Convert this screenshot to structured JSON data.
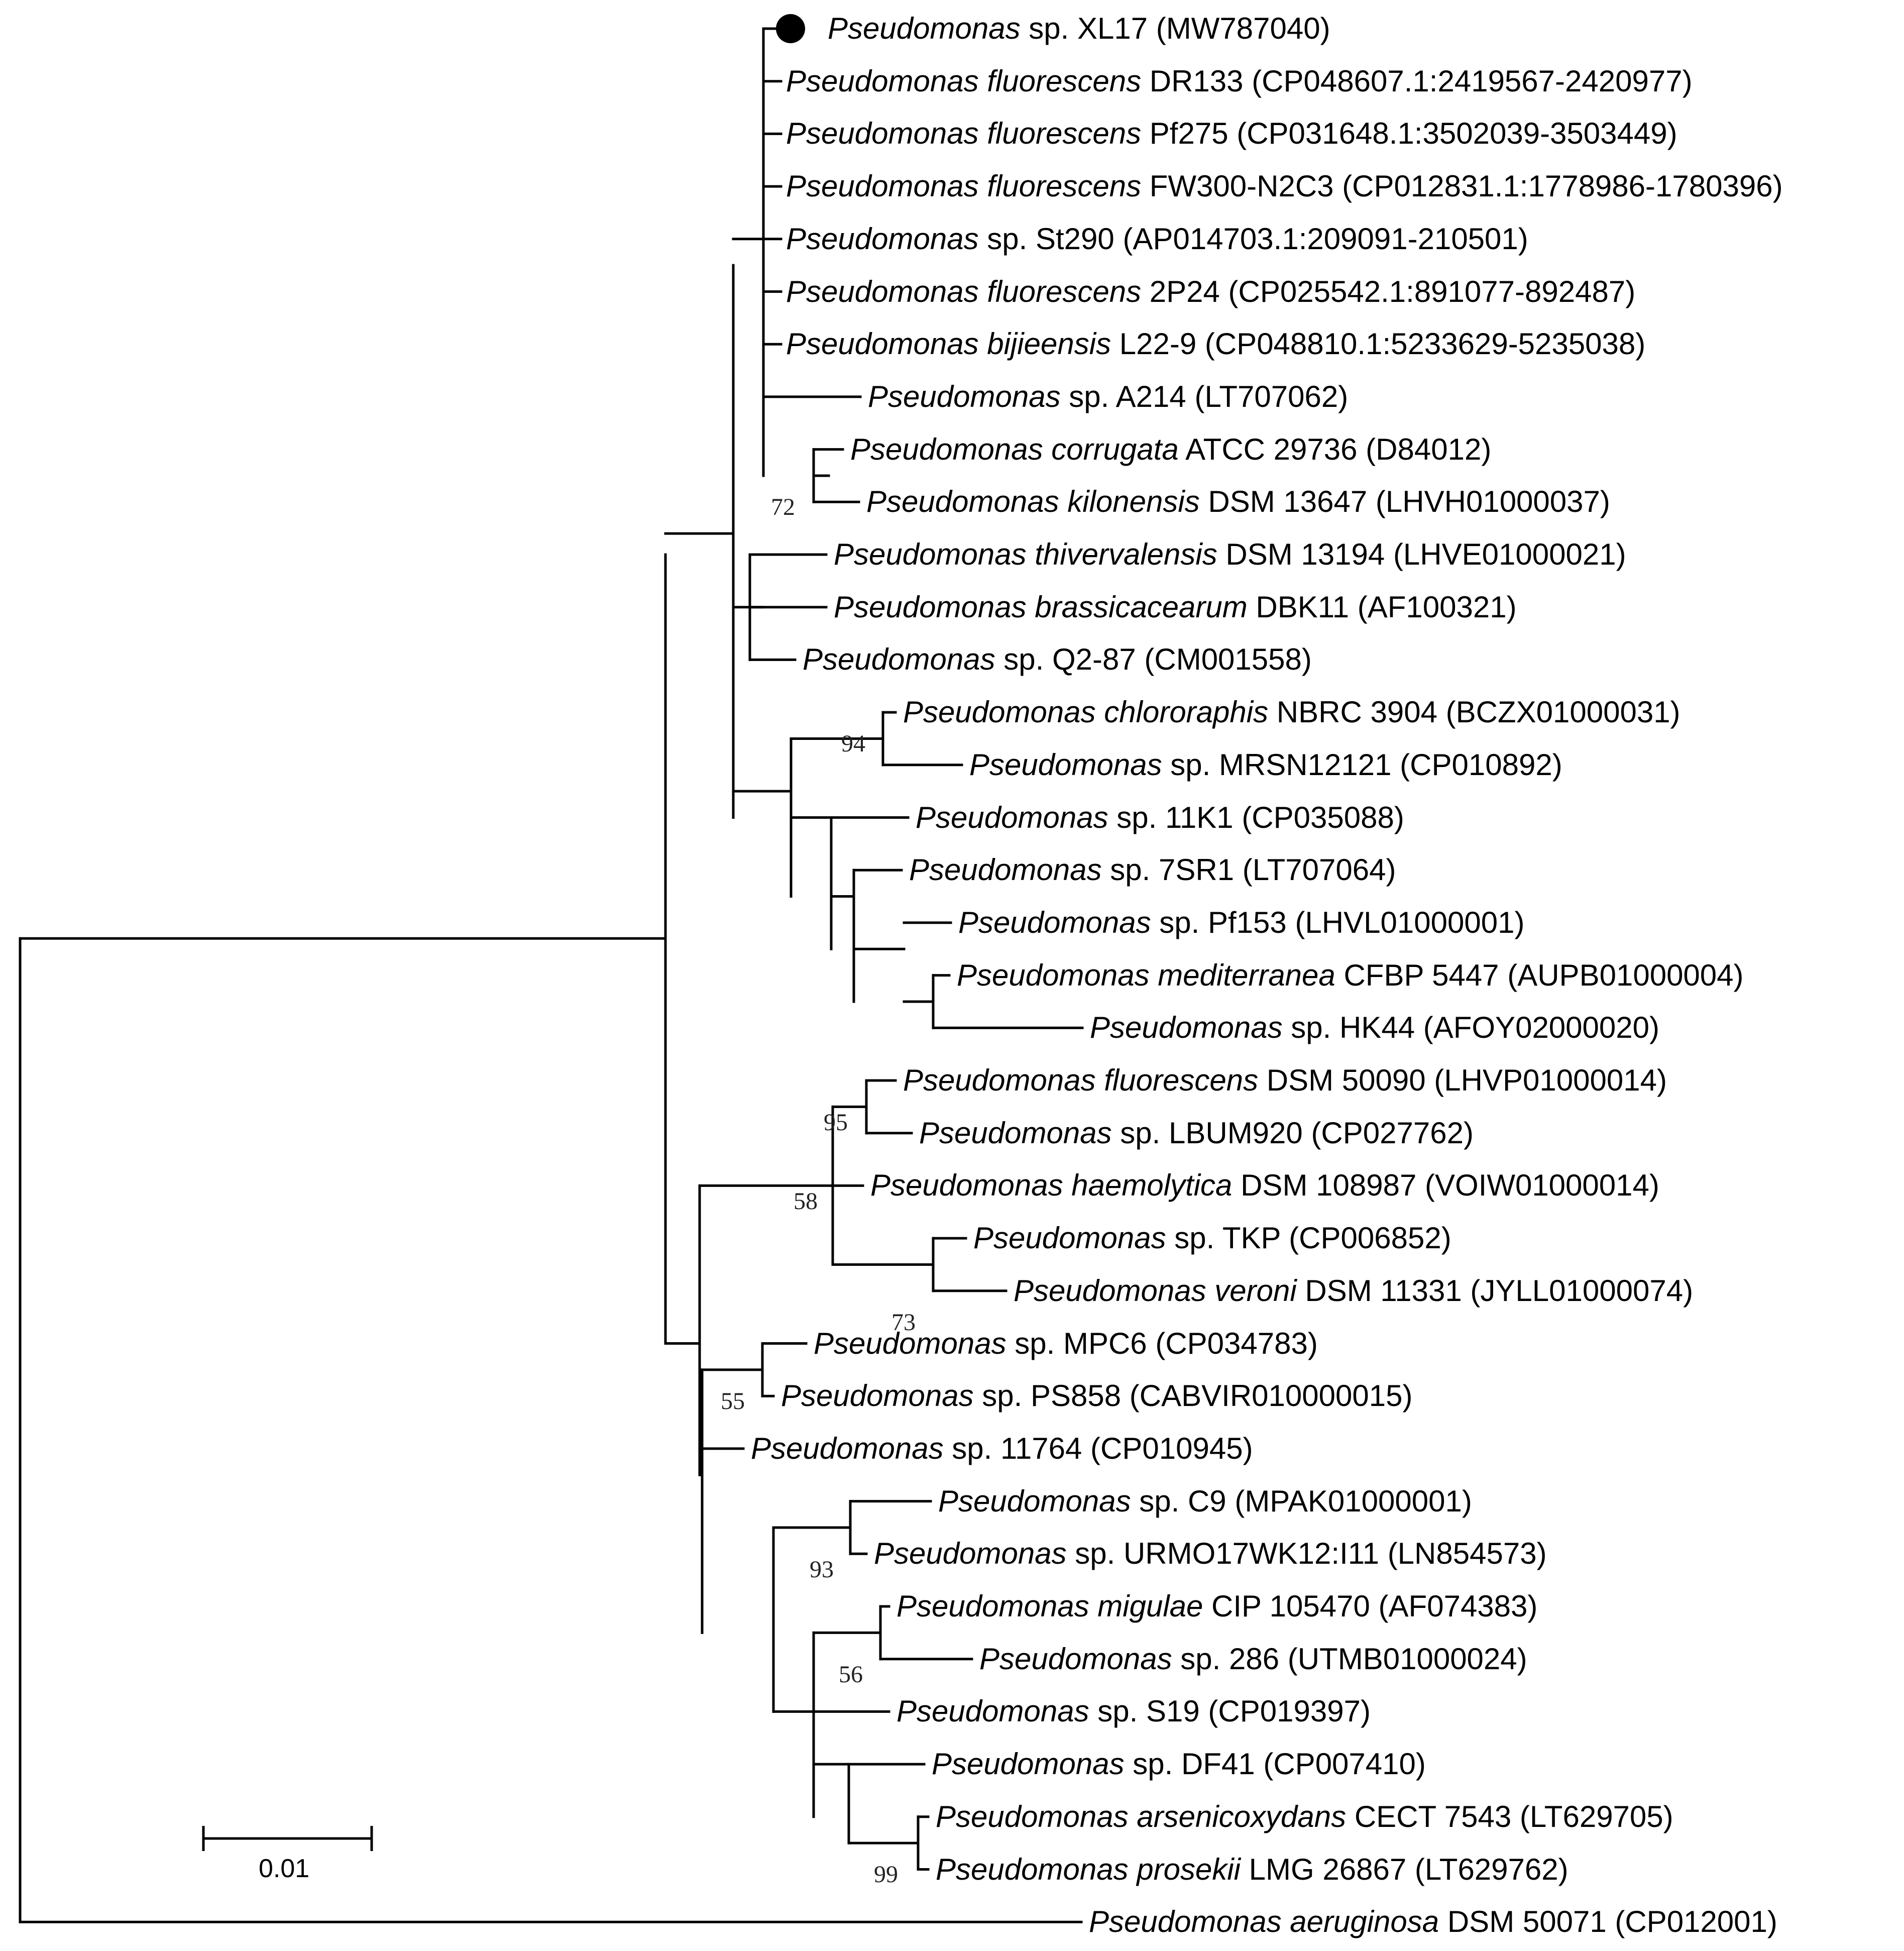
{
  "figure": {
    "type": "phylogenetic_tree",
    "scale_bar_label": "0.01",
    "query_marker": "filled-circle"
  },
  "taxa": [
    {
      "id": "t1",
      "genus": "Pseudomonas",
      "species": "",
      "rest": " sp. XL17 (MW787040)",
      "marker": true
    },
    {
      "id": "t2",
      "genus": "Pseudomonas",
      "species": "fluorescens",
      "rest": " DR133 (CP048607.1:2419567-2420977)"
    },
    {
      "id": "t3",
      "genus": "Pseudomonas",
      "species": "fluorescens",
      "rest": " Pf275 (CP031648.1:3502039-3503449)"
    },
    {
      "id": "t4",
      "genus": "Pseudomonas",
      "species": "fluorescens",
      "rest": " FW300-N2C3 (CP012831.1:1778986-1780396)"
    },
    {
      "id": "t5",
      "genus": "Pseudomonas",
      "species": "",
      "rest": " sp. St290 (AP014703.1:209091-210501)"
    },
    {
      "id": "t6",
      "genus": "Pseudomonas",
      "species": "fluorescens",
      "rest": " 2P24 (CP025542.1:891077-892487)"
    },
    {
      "id": "t7",
      "genus": "Pseudomonas",
      "species": "bijieensis",
      "rest": " L22-9 (CP048810.1:5233629-5235038)"
    },
    {
      "id": "t8",
      "genus": "Pseudomonas",
      "species": "",
      "rest": " sp. A214 (LT707062)"
    },
    {
      "id": "t9",
      "genus": "Pseudomonas",
      "species": "corrugata",
      "rest": " ATCC 29736 (D84012)"
    },
    {
      "id": "t10",
      "genus": "Pseudomonas",
      "species": "kilonensis",
      "rest": " DSM 13647 (LHVH01000037)"
    },
    {
      "id": "t11",
      "genus": "Pseudomonas",
      "species": "thivervalensis",
      "rest": " DSM 13194 (LHVE01000021)"
    },
    {
      "id": "t12",
      "genus": "Pseudomonas",
      "species": "brassicacearum",
      "rest": " DBK11 (AF100321)"
    },
    {
      "id": "t13",
      "genus": "Pseudomonas",
      "species": "",
      "rest": " sp. Q2-87 (CM001558)"
    },
    {
      "id": "t14",
      "genus": "Pseudomonas",
      "species": "chlororaphis",
      "rest": " NBRC 3904 (BCZX01000031)"
    },
    {
      "id": "t15",
      "genus": "Pseudomonas",
      "species": "",
      "rest": " sp. MRSN12121 (CP010892)"
    },
    {
      "id": "t16",
      "genus": "Pseudomonas",
      "species": "",
      "rest": " sp. 11K1 (CP035088)"
    },
    {
      "id": "t17",
      "genus": "Pseudomonas",
      "species": "",
      "rest": " sp. 7SR1 (LT707064)"
    },
    {
      "id": "t18",
      "genus": "Pseudomonas",
      "species": "",
      "rest": " sp. Pf153 (LHVL01000001)"
    },
    {
      "id": "t19",
      "genus": "Pseudomonas",
      "species": "mediterranea",
      "rest": " CFBP 5447 (AUPB01000004)"
    },
    {
      "id": "t20",
      "genus": "Pseudomonas",
      "species": "",
      "rest": " sp. HK44 (AFOY02000020)"
    },
    {
      "id": "t21",
      "genus": "Pseudomonas",
      "species": "fluorescens",
      "rest": " DSM 50090 (LHVP01000014)"
    },
    {
      "id": "t22",
      "genus": "Pseudomonas",
      "species": "",
      "rest": " sp. LBUM920 (CP027762)"
    },
    {
      "id": "t23",
      "genus": "Pseudomonas",
      "species": "haemolytica",
      "rest": " DSM 108987 (VOIW01000014)"
    },
    {
      "id": "t24",
      "genus": "Pseudomonas",
      "species": "",
      "rest": " sp. TKP (CP006852)"
    },
    {
      "id": "t25",
      "genus": "Pseudomonas",
      "species": "veroni",
      "rest": " DSM 11331 (JYLL01000074)"
    },
    {
      "id": "t26",
      "genus": "Pseudomonas",
      "species": "",
      "rest": " sp. MPC6 (CP034783)"
    },
    {
      "id": "t27",
      "genus": "Pseudomonas",
      "species": "",
      "rest": " sp. PS858 (CABVIR010000015)"
    },
    {
      "id": "t28",
      "genus": "Pseudomonas",
      "species": "",
      "rest": " sp. 11764 (CP010945)"
    },
    {
      "id": "t29",
      "genus": "Pseudomonas",
      "species": "",
      "rest": " sp. C9 (MPAK01000001)"
    },
    {
      "id": "t30",
      "genus": "Pseudomonas",
      "species": "",
      "rest": " sp. URMO17WK12:I11 (LN854573)"
    },
    {
      "id": "t31",
      "genus": "Pseudomonas",
      "species": "migulae",
      "rest": " CIP 105470 (AF074383)"
    },
    {
      "id": "t32",
      "genus": "Pseudomonas",
      "species": "",
      "rest": " sp. 286 (UTMB01000024)"
    },
    {
      "id": "t33",
      "genus": "Pseudomonas",
      "species": "",
      "rest": " sp. S19 (CP019397)"
    },
    {
      "id": "t34",
      "genus": "Pseudomonas",
      "species": "",
      "rest": " sp. DF41 (CP007410)"
    },
    {
      "id": "t35",
      "genus": "Pseudomonas",
      "species": "arsenicoxydans",
      "rest": " CECT 7543 (LT629705)"
    },
    {
      "id": "t36",
      "genus": "Pseudomonas",
      "species": "prosekii",
      "rest": " LMG 26867 (LT629762)"
    },
    {
      "id": "t37",
      "genus": "Pseudomonas",
      "species": "aeruginosa",
      "rest": " DSM 50071 (CP012001)"
    }
  ],
  "bootstrap": [
    {
      "node": "corrugata-kilonensis",
      "value": "72"
    },
    {
      "node": "chlororaphis-MRSN12121",
      "value": "94"
    },
    {
      "node": "fluorescensDSM50090-LBUM920",
      "value": "95"
    },
    {
      "node": "fluorescens-veroni-group",
      "value": "58"
    },
    {
      "node": "TKP-veroni",
      "value": "73"
    },
    {
      "node": "MPC6-PS858",
      "value": "55"
    },
    {
      "node": "C9-URMO17WK12",
      "value": "93"
    },
    {
      "node": "migulae-286",
      "value": "56"
    },
    {
      "node": "arsenicoxydans-prosekii",
      "value": "99"
    }
  ]
}
